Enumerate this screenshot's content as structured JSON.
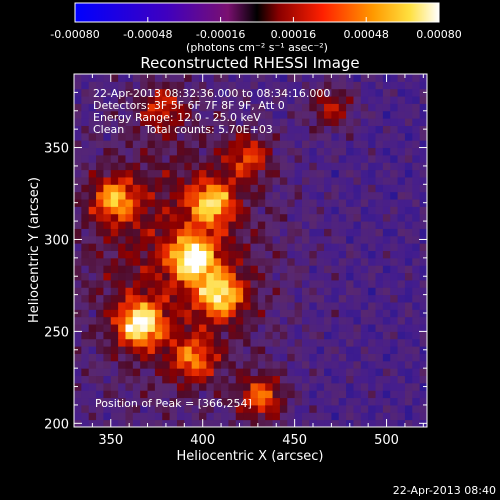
{
  "chart_data": {
    "type": "heatmap",
    "title": "Reconstructed RHESSI Image",
    "xlabel": "Heliocentric X (arcsec)",
    "ylabel": "Heliocentric Y (arcsec)",
    "xlim": [
      330,
      522
    ],
    "ylim": [
      198,
      390
    ],
    "xticks": [
      350,
      400,
      450,
      500
    ],
    "yticks": [
      200,
      250,
      300,
      350
    ],
    "colorbar": {
      "range": [
        -0.0008,
        0.0008
      ],
      "ticks": [
        "-0.00080",
        "-0.00048",
        "-0.00016",
        "0.00016",
        "0.00048",
        "0.00080"
      ],
      "unit_label": "(photons cm⁻² s⁻¹ asec⁻²)"
    },
    "annotations": {
      "time_range": "22-Apr-2013 08:32:36.000 to 08:34:16.000",
      "detectors": "Detectors: 3F 5F 6F 7F 8F 9F, Att 0",
      "energy": "Energy Range: 12.0 - 25.0 keV",
      "clean": "Clean",
      "total_counts": "Total counts: 5.70E+03",
      "peak": "Position of Peak = [366,254]"
    },
    "bright_sources": [
      {
        "x": 366,
        "y": 254,
        "intensity": 1.0
      },
      {
        "x": 395,
        "y": 290,
        "intensity": 0.95
      },
      {
        "x": 410,
        "y": 270,
        "intensity": 0.85
      },
      {
        "x": 405,
        "y": 320,
        "intensity": 0.8
      },
      {
        "x": 352,
        "y": 322,
        "intensity": 0.75
      },
      {
        "x": 432,
        "y": 214,
        "intensity": 0.7
      },
      {
        "x": 395,
        "y": 235,
        "intensity": 0.6
      },
      {
        "x": 425,
        "y": 345,
        "intensity": 0.55
      },
      {
        "x": 378,
        "y": 372,
        "intensity": 0.5
      },
      {
        "x": 470,
        "y": 372,
        "intensity": 0.5
      }
    ]
  },
  "footer_timestamp": "22-Apr-2013 08:40"
}
